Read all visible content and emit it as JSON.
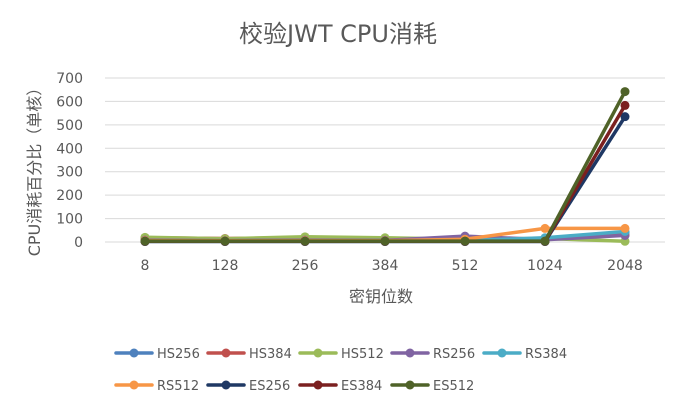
{
  "chart_data": {
    "type": "line",
    "title": "校验JWT CPU消耗",
    "xlabel": "密钥位数",
    "ylabel": "CPU消耗百分比（单核）",
    "categories": [
      "8",
      "128",
      "256",
      "384",
      "512",
      "1024",
      "2048"
    ],
    "ylim": [
      0,
      700
    ],
    "yticks": [
      0,
      100,
      200,
      300,
      400,
      500,
      600,
      700
    ],
    "grid": true,
    "legend": "bottom",
    "series": [
      {
        "name": "HS256",
        "color": "#4e81bd",
        "values": [
          12,
          10,
          12,
          8,
          10,
          12,
          40
        ]
      },
      {
        "name": "HS384",
        "color": "#c0504d",
        "values": [
          18,
          15,
          18,
          12,
          14,
          15,
          30
        ]
      },
      {
        "name": "HS512",
        "color": "#9bbb59",
        "values": [
          20,
          14,
          22,
          18,
          12,
          15,
          3
        ]
      },
      {
        "name": "RS256",
        "color": "#8064a2",
        "values": [
          8,
          6,
          8,
          7,
          25,
          10,
          28
        ]
      },
      {
        "name": "RS384",
        "color": "#4bacc6",
        "values": [
          5,
          4,
          5,
          4,
          6,
          18,
          45
        ]
      },
      {
        "name": "RS512",
        "color": "#f79646",
        "values": [
          6,
          5,
          6,
          5,
          12,
          58,
          58
        ]
      },
      {
        "name": "ES256",
        "color": "#1f3864",
        "values": [
          2,
          2,
          2,
          2,
          2,
          2,
          535
        ]
      },
      {
        "name": "ES384",
        "color": "#7b2020",
        "values": [
          3,
          3,
          3,
          3,
          3,
          3,
          583
        ]
      },
      {
        "name": "ES512",
        "color": "#4f6228",
        "values": [
          4,
          4,
          4,
          4,
          4,
          4,
          642
        ]
      }
    ]
  }
}
